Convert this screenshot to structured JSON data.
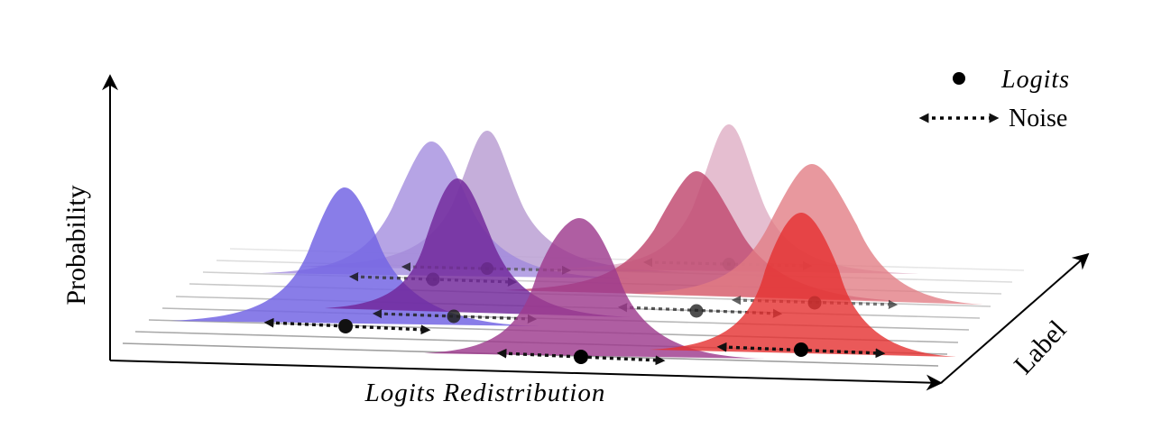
{
  "labels": {
    "x_axis": "Logits Redistribution",
    "y_axis": "Probability",
    "z_axis": "Label"
  },
  "legend": {
    "logits_label": "Logits",
    "noise_label": "Noise"
  },
  "colors": {
    "axis": "#000000",
    "blue": "#6a55e6",
    "violet": "#9b7fd6",
    "purple": "#7a2b9e",
    "magenta": "#a04a95",
    "crimson": "#c43f62",
    "pink": "#d79ab3",
    "salmon": "#e06a6e",
    "red": "#e2262c"
  },
  "distributions": [
    {
      "name": "blue-front-left",
      "color": "blue"
    },
    {
      "name": "violet-back-left",
      "color": "violet"
    },
    {
      "name": "lilac-back-left",
      "color": "violet"
    },
    {
      "name": "purple-middle-left",
      "color": "purple"
    },
    {
      "name": "magenta-front-center",
      "color": "magenta"
    },
    {
      "name": "crimson-middle-right",
      "color": "crimson"
    },
    {
      "name": "pink-back-right",
      "color": "pink"
    },
    {
      "name": "salmon-middle-right",
      "color": "salmon"
    },
    {
      "name": "red-front-right",
      "color": "red"
    }
  ]
}
